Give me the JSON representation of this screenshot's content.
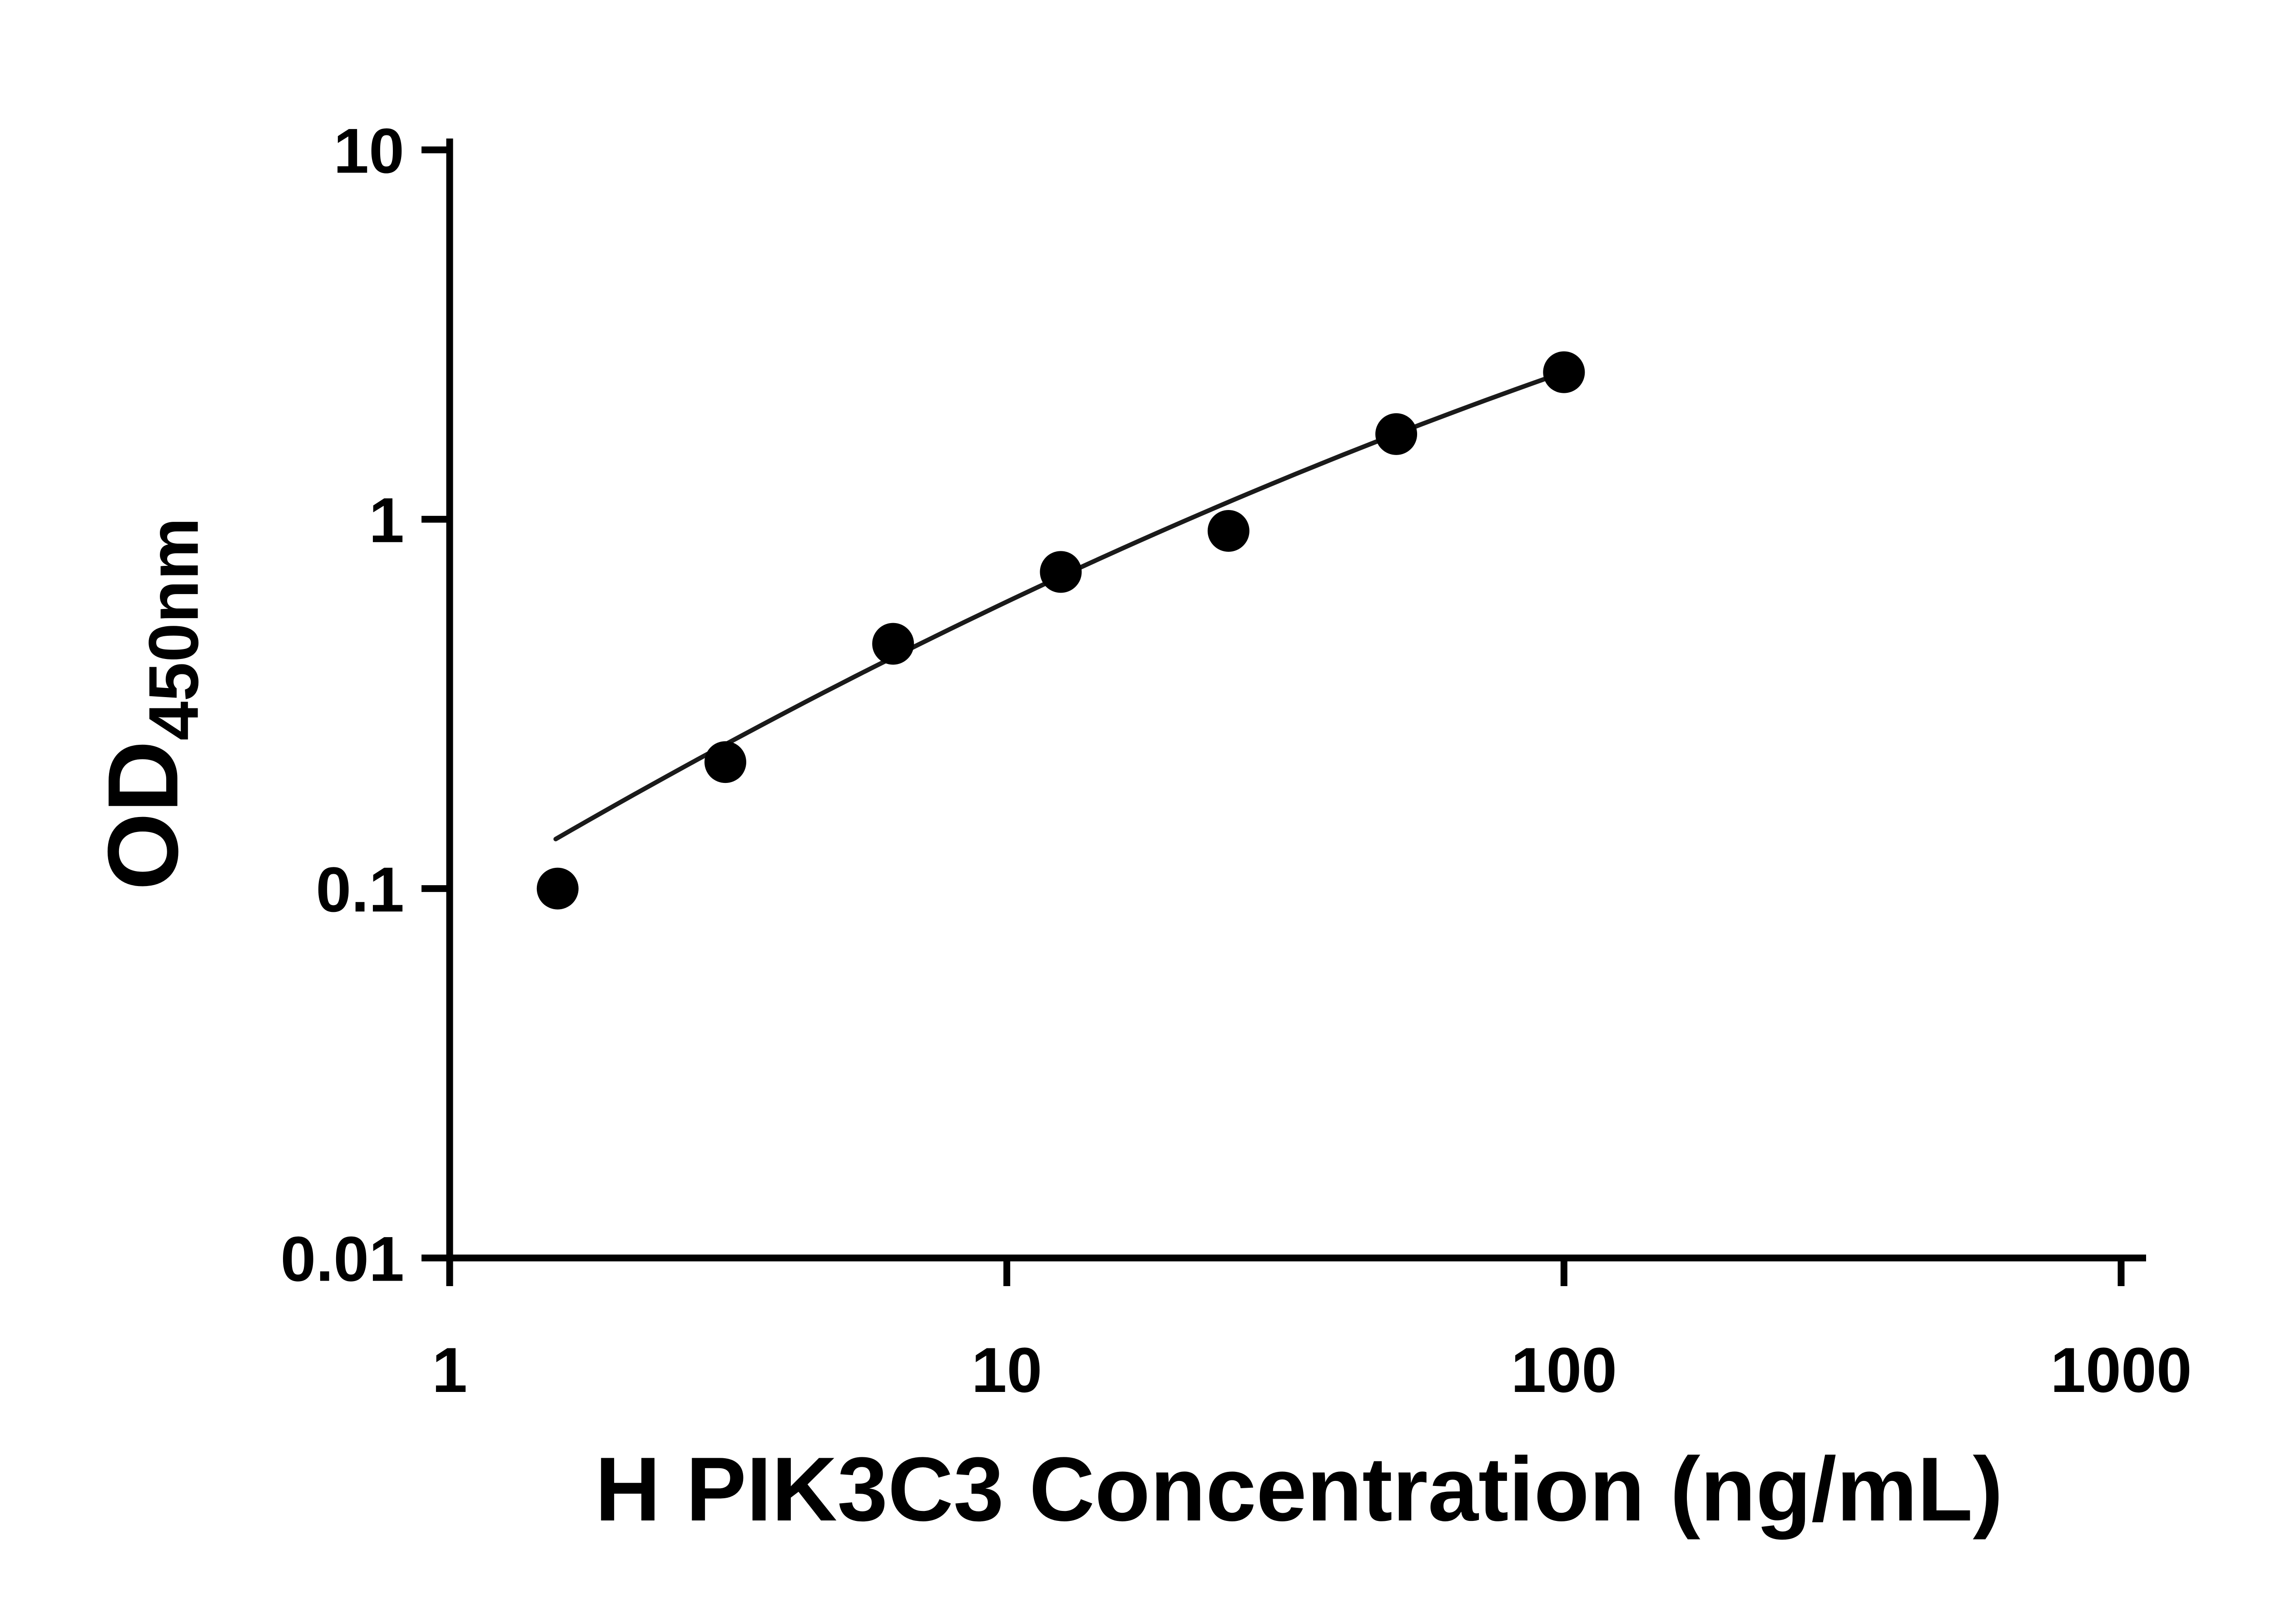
{
  "chart_data": {
    "type": "scatter",
    "xlabel": "H PIK3C3 Concentration (ng/mL)",
    "ylabel_main": "OD",
    "ylabel_sub": "450nm",
    "x_scale": "log",
    "y_scale": "log",
    "xlim": [
      1,
      1000
    ],
    "ylim": [
      0.01,
      10
    ],
    "x_ticks": [
      1,
      10,
      100,
      1000
    ],
    "x_tick_labels": [
      "1",
      "10",
      "100",
      "1000"
    ],
    "y_ticks": [
      0.01,
      0.1,
      1,
      10
    ],
    "y_tick_labels": [
      "0.01",
      "0.1",
      "1",
      "10"
    ],
    "grid": false,
    "legend": false,
    "points": {
      "x": [
        1.5625,
        3.125,
        6.25,
        12.5,
        25,
        50,
        100
      ],
      "y": [
        0.1,
        0.22,
        0.46,
        0.72,
        0.93,
        1.7,
        2.5
      ]
    },
    "fit_curve": {
      "type": "quadratic_loglog",
      "x_start": 1.55,
      "x_end": 100,
      "anchors_x": [
        1.6,
        12.5,
        100
      ],
      "anchors_y": [
        0.14,
        0.7,
        2.5
      ]
    },
    "axis_color": "#000000",
    "marker_color": "#000000",
    "line_color": "#1a1a1a"
  }
}
